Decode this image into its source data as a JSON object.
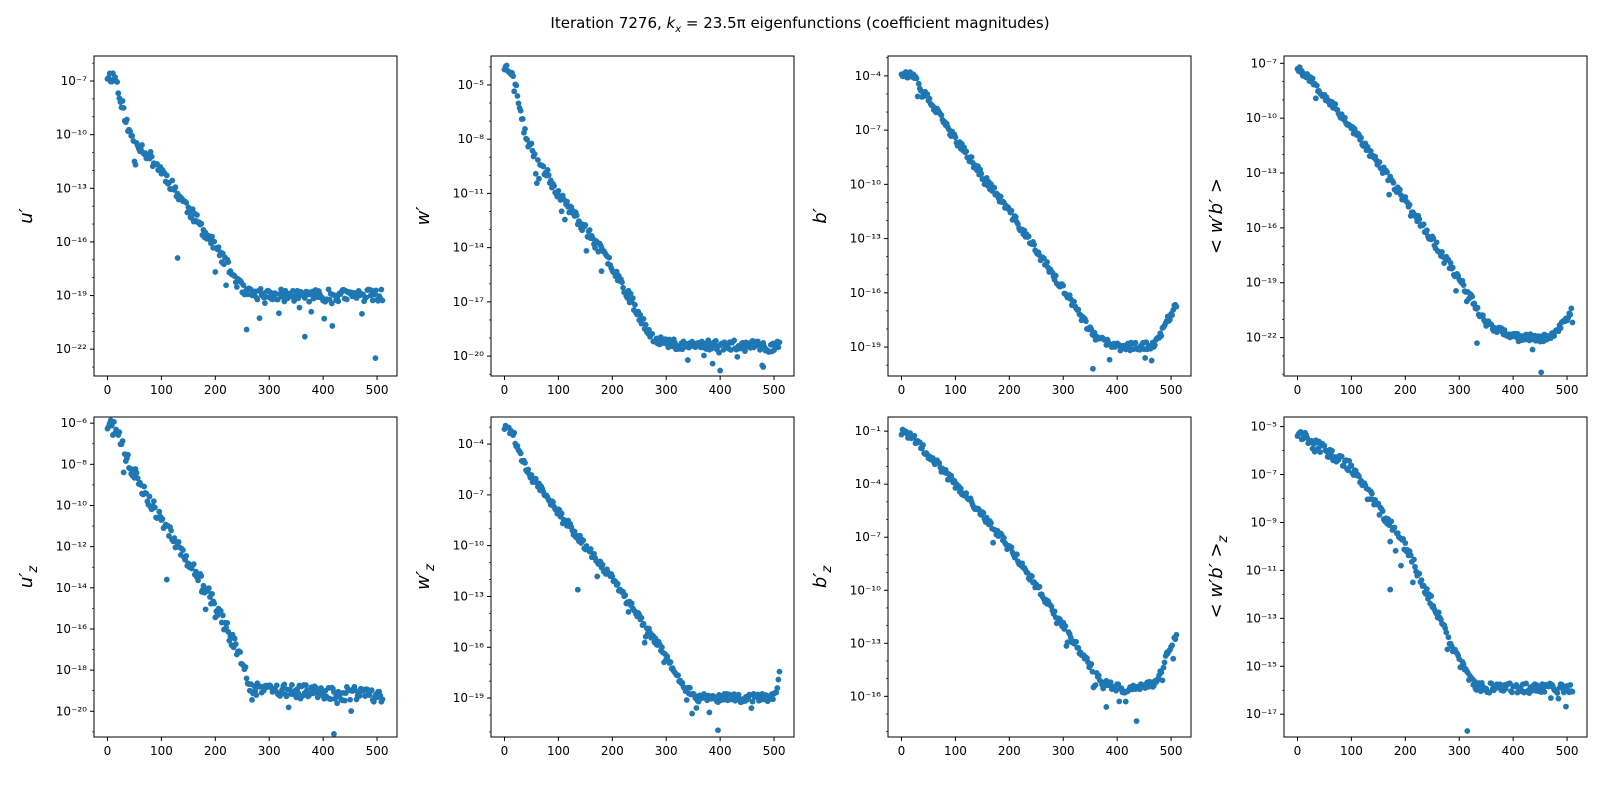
{
  "title": {
    "prefix": "Iteration 7276, ",
    "math": "k",
    "math_sub": "x",
    "math_rest": " = 23.5π",
    "suffix": " eigenfunctions (coefficient magnitudes)"
  },
  "marker_color": "#1f77b4",
  "chart_data": [
    {
      "type": "scatter",
      "panel": "u'",
      "ylabel": "u′",
      "yscale": "log",
      "ylim_exp": [
        -23.5,
        -5.6
      ],
      "yticks_exp": [
        -22,
        -19,
        -16,
        -13,
        -10,
        -7
      ],
      "xticks": [
        0,
        100,
        200,
        300,
        400,
        500
      ],
      "xlim": [
        -25,
        537
      ],
      "profile": [
        [
          0,
          -6.7
        ],
        [
          15,
          -6.8
        ],
        [
          40,
          -9.9
        ],
        [
          100,
          -12.0
        ],
        [
          200,
          -16.3
        ],
        [
          255,
          -18.9
        ],
        [
          300,
          -19.0
        ],
        [
          500,
          -19.0
        ],
        [
          511,
          -19.0
        ]
      ],
      "noise": 0.35,
      "outlier_amp": 1.6,
      "outliers": [
        [
          130,
          -16.9
        ],
        [
          258,
          -20.9
        ],
        [
          366,
          -21.3
        ],
        [
          417,
          -20.7
        ],
        [
          497,
          -22.5
        ]
      ],
      "seed": 11
    },
    {
      "type": "scatter",
      "panel": "w'",
      "ylabel": "w′",
      "yscale": "log",
      "ylim_exp": [
        -21.1,
        -3.4
      ],
      "yticks_exp": [
        -20,
        -17,
        -14,
        -11,
        -8,
        -5
      ],
      "xticks": [
        0,
        100,
        200,
        300,
        400,
        500
      ],
      "xlim": [
        -25,
        537
      ],
      "profile": [
        [
          0,
          -4.0
        ],
        [
          15,
          -4.2
        ],
        [
          40,
          -8.0
        ],
        [
          100,
          -11.0
        ],
        [
          200,
          -15.0
        ],
        [
          270,
          -18.8
        ],
        [
          300,
          -19.3
        ],
        [
          500,
          -19.5
        ],
        [
          511,
          -19.4
        ]
      ],
      "noise": 0.3,
      "outlier_amp": 1.3,
      "outliers": [
        [
          180,
          -15.3
        ],
        [
          400,
          -20.8
        ],
        [
          480,
          -20.6
        ]
      ],
      "seed": 23
    },
    {
      "type": "scatter",
      "panel": "b'",
      "ylabel": "b′",
      "yscale": "log",
      "ylim_exp": [
        -20.6,
        -2.9
      ],
      "yticks_exp": [
        -19,
        -16,
        -13,
        -10,
        -7,
        -4
      ],
      "xticks": [
        0,
        100,
        200,
        300,
        400,
        500
      ],
      "xlim": [
        -25,
        537
      ],
      "profile": [
        [
          0,
          -3.8
        ],
        [
          20,
          -4.0
        ],
        [
          100,
          -7.5
        ],
        [
          200,
          -11.5
        ],
        [
          300,
          -15.8
        ],
        [
          360,
          -18.5
        ],
        [
          400,
          -19.0
        ],
        [
          470,
          -18.9
        ],
        [
          511,
          -16.5
        ]
      ],
      "noise": 0.22,
      "outlier_amp": 1.0,
      "outliers": [
        [
          355,
          -20.2
        ],
        [
          386,
          -19.7
        ]
      ],
      "seed": 37
    },
    {
      "type": "scatter",
      "panel": "<w'b'>",
      "ylabel": "< w′b′ >",
      "yscale": "log",
      "ylim_exp": [
        -24.1,
        -6.6
      ],
      "yticks_exp": [
        -22,
        -19,
        -16,
        -13,
        -10,
        -7
      ],
      "xticks": [
        0,
        100,
        200,
        300,
        400,
        500
      ],
      "xlim": [
        -25,
        537
      ],
      "profile": [
        [
          0,
          -7.2
        ],
        [
          20,
          -7.7
        ],
        [
          100,
          -10.5
        ],
        [
          200,
          -14.5
        ],
        [
          300,
          -18.8
        ],
        [
          350,
          -21.2
        ],
        [
          400,
          -22.0
        ],
        [
          470,
          -22.0
        ],
        [
          511,
          -20.5
        ]
      ],
      "noise": 0.22,
      "outlier_amp": 1.0,
      "outliers": [
        [
          333,
          -22.3
        ],
        [
          452,
          -23.9
        ]
      ],
      "seed": 53
    },
    {
      "type": "scatter",
      "panel": "u'_z",
      "ylabel": "u′",
      "ylabel_sub": "z",
      "yscale": "log",
      "ylim_exp": [
        -21.25,
        -5.7
      ],
      "yticks_exp": [
        -20,
        -18,
        -16,
        -14,
        -12,
        -10,
        -8,
        -6
      ],
      "xticks": [
        0,
        100,
        200,
        300,
        400,
        500
      ],
      "xlim": [
        -25,
        537
      ],
      "profile": [
        [
          0,
          -6.1
        ],
        [
          15,
          -6.3
        ],
        [
          40,
          -8.0
        ],
        [
          100,
          -10.7
        ],
        [
          200,
          -14.8
        ],
        [
          240,
          -17.0
        ],
        [
          265,
          -18.8
        ],
        [
          300,
          -19.0
        ],
        [
          500,
          -19.2
        ],
        [
          511,
          -19.7
        ]
      ],
      "noise": 0.35,
      "outlier_amp": 1.0,
      "outliers": [
        [
          110,
          -13.6
        ],
        [
          175,
          -14.2
        ],
        [
          420,
          -21.1
        ]
      ],
      "seed": 71
    },
    {
      "type": "scatter",
      "panel": "w'_z",
      "ylabel": "w′",
      "ylabel_sub": "z",
      "yscale": "log",
      "ylim_exp": [
        -21.3,
        -2.4
      ],
      "yticks_exp": [
        -19,
        -16,
        -13,
        -10,
        -7,
        -4
      ],
      "xticks": [
        0,
        100,
        200,
        300,
        400,
        500
      ],
      "xlim": [
        -25,
        537
      ],
      "profile": [
        [
          0,
          -3.0
        ],
        [
          15,
          -3.3
        ],
        [
          40,
          -5.5
        ],
        [
          100,
          -8.0
        ],
        [
          200,
          -12.0
        ],
        [
          300,
          -16.5
        ],
        [
          330,
          -18.3
        ],
        [
          360,
          -19.0
        ],
        [
          500,
          -19.0
        ],
        [
          511,
          -17.5
        ]
      ],
      "noise": 0.25,
      "outlier_amp": 1.2,
      "outliers": [
        [
          136,
          -12.6
        ],
        [
          396,
          -20.9
        ]
      ],
      "seed": 89
    },
    {
      "type": "scatter",
      "panel": "b'_z",
      "ylabel": "b′",
      "ylabel_sub": "z",
      "yscale": "log",
      "ylim_exp": [
        -18.3,
        -0.2
      ],
      "yticks_exp": [
        -16,
        -13,
        -10,
        -7,
        -4,
        -1
      ],
      "xticks": [
        0,
        100,
        200,
        300,
        400,
        500
      ],
      "xlim": [
        -25,
        537
      ],
      "profile": [
        [
          0,
          -1.1
        ],
        [
          20,
          -1.3
        ],
        [
          100,
          -4.0
        ],
        [
          200,
          -7.5
        ],
        [
          300,
          -12.0
        ],
        [
          370,
          -15.2
        ],
        [
          410,
          -15.6
        ],
        [
          470,
          -15.3
        ],
        [
          511,
          -12.4
        ]
      ],
      "noise": 0.22,
      "outlier_amp": 1.0,
      "outliers": [
        [
          380,
          -16.6
        ],
        [
          436,
          -17.4
        ]
      ],
      "seed": 101
    },
    {
      "type": "scatter",
      "panel": "<w'b'>_z",
      "ylabel": "< w′b′ >",
      "ylabel_sub": "z",
      "yscale": "log",
      "ylim_exp": [
        -17.95,
        -4.6
      ],
      "yticks_exp": [
        -17,
        -15,
        -13,
        -11,
        -9,
        -7,
        -5
      ],
      "xticks": [
        0,
        100,
        200,
        300,
        400,
        500
      ],
      "xlim": [
        -25,
        537
      ],
      "profile": [
        [
          0,
          -5.3
        ],
        [
          20,
          -5.5
        ],
        [
          100,
          -6.7
        ],
        [
          200,
          -10.0
        ],
        [
          280,
          -13.8
        ],
        [
          310,
          -15.2
        ],
        [
          330,
          -15.9
        ],
        [
          500,
          -15.9
        ],
        [
          511,
          -15.9
        ]
      ],
      "noise": 0.22,
      "outlier_amp": 1.0,
      "outliers": [
        [
          172,
          -11.8
        ],
        [
          315,
          -17.7
        ]
      ],
      "seed": 131
    }
  ]
}
